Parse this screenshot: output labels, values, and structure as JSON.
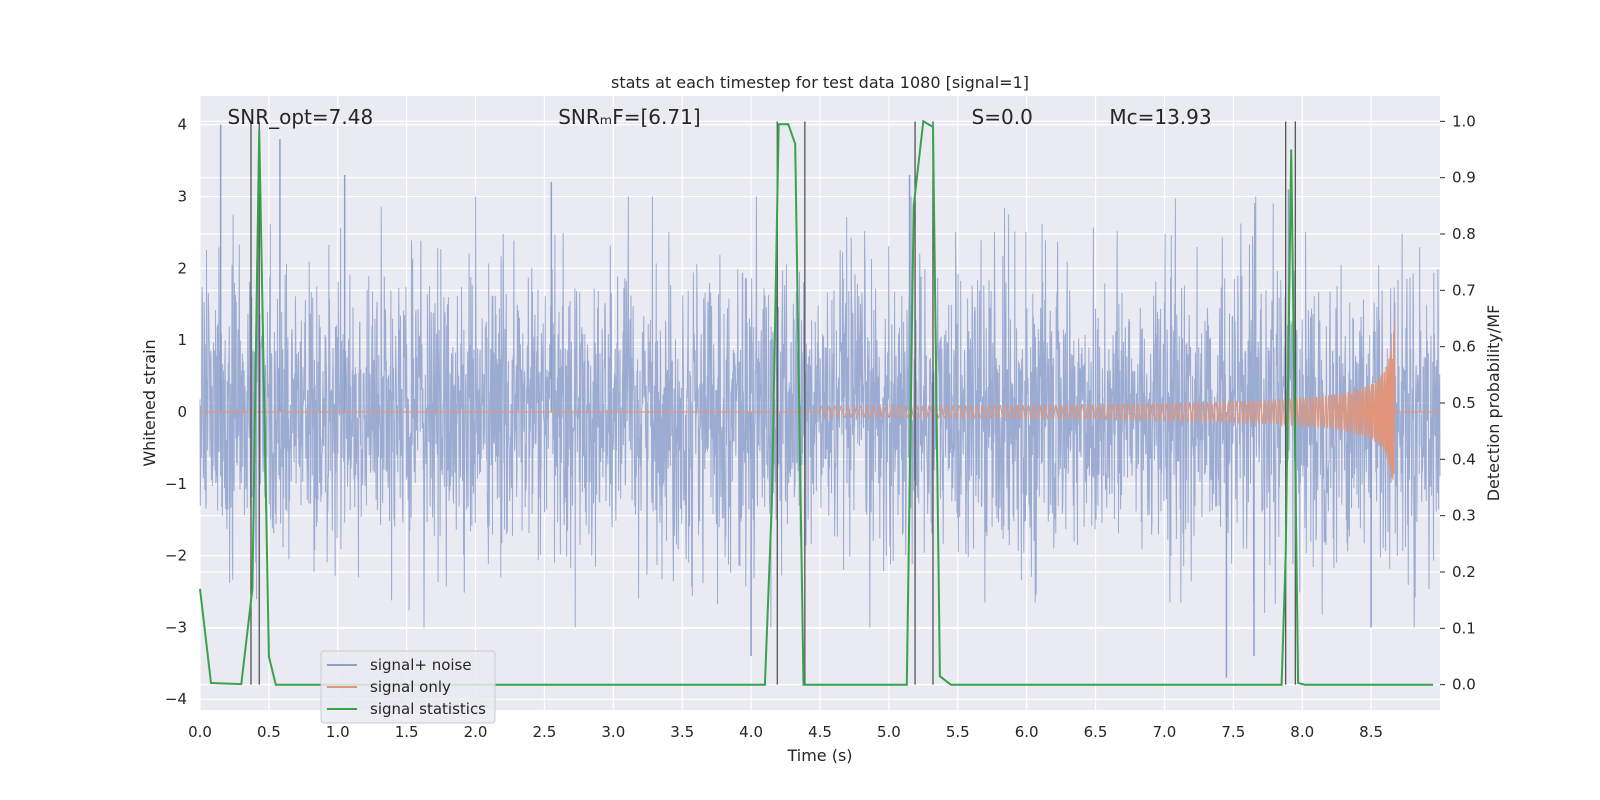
{
  "chart_data": {
    "type": "line",
    "title": "stats at each timestep for test data 1080 [signal=1]",
    "xlabel": "Time (s)",
    "ylabel": "Whitened strain",
    "y2label": "Detection probability/MF",
    "xlim": [
      0,
      9.0
    ],
    "ylim": [
      -4.15,
      4.4
    ],
    "y2lim": [
      -0.045,
      1.045
    ],
    "xticks": [
      "0.0",
      "0.5",
      "1.0",
      "1.5",
      "2.0",
      "2.5",
      "3.0",
      "3.5",
      "4.0",
      "4.5",
      "5.0",
      "5.5",
      "6.0",
      "6.5",
      "7.0",
      "7.5",
      "8.0",
      "8.5"
    ],
    "yticks": [
      "4",
      "3",
      "2",
      "1",
      "0",
      "−1",
      "−2",
      "−3",
      "−4"
    ],
    "y2ticks": [
      "1.0",
      "0.9",
      "0.8",
      "0.7",
      "0.6",
      "0.5",
      "0.4",
      "0.3",
      "0.2",
      "0.1",
      "0.0"
    ],
    "grid": true,
    "legend_position": "lower-left",
    "annotations": [
      {
        "text": "SNR_opt=7.48",
        "x": 0.2
      },
      {
        "text": "SNRₘF=[6.71]",
        "x": 2.6
      },
      {
        "text": "S=0.0",
        "x": 5.6
      },
      {
        "text": "Mᴄ=13.93",
        "x": 6.6
      }
    ],
    "series": [
      {
        "name": "signal+ noise",
        "color": "#8da0cb",
        "axis": "left",
        "noise_sigma": 1.0,
        "spikes": [
          {
            "x": 0.15,
            "y": 4.0
          },
          {
            "x": 0.58,
            "y": 3.8
          },
          {
            "x": 1.05,
            "y": 3.3
          },
          {
            "x": 2.55,
            "y": 3.2
          },
          {
            "x": 4.0,
            "y": -3.4
          },
          {
            "x": 5.15,
            "y": 3.3
          },
          {
            "x": 7.45,
            "y": -3.7
          },
          {
            "x": 7.65,
            "y": -3.4
          },
          {
            "x": 7.9,
            "y": 3.1
          },
          {
            "x": 8.5,
            "y": -3.0
          }
        ]
      },
      {
        "name": "signal only",
        "color": "#e1957a",
        "axis": "left",
        "chirp": {
          "start": 4.5,
          "end": 8.67,
          "peak_amplitude": 1.45
        }
      },
      {
        "name": "signal statistics",
        "color": "#3aa24a",
        "axis": "right",
        "x": [
          0.0,
          0.08,
          0.3,
          0.38,
          0.43,
          0.5,
          0.55,
          4.1,
          4.15,
          4.2,
          4.27,
          4.32,
          4.38,
          4.41,
          5.13,
          5.18,
          5.25,
          5.32,
          5.37,
          5.45,
          7.85,
          7.88,
          7.92,
          7.97,
          8.02,
          8.95
        ],
        "values": [
          0.17,
          0.003,
          0.001,
          0.17,
          0.985,
          0.05,
          0.0,
          0.0,
          0.32,
          0.995,
          0.995,
          0.96,
          0.0,
          0.0,
          0.0,
          0.85,
          1.0,
          0.99,
          0.015,
          0.0,
          0.0,
          0.23,
          0.95,
          0.003,
          0.0,
          0.0
        ]
      }
    ],
    "vlines": [
      0.37,
      0.43,
      4.19,
      4.39,
      5.19,
      5.32,
      7.88,
      7.95
    ]
  }
}
